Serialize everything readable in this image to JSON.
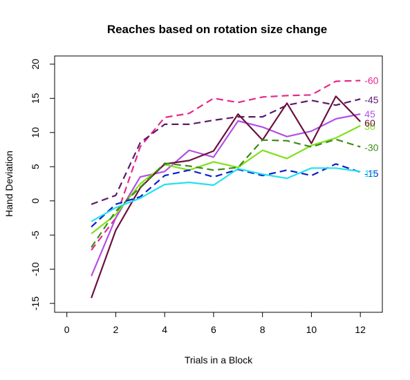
{
  "chart_data": {
    "type": "line",
    "title": "Reaches based on rotation size change",
    "xlabel": "Trials in a Block",
    "ylabel": "Hand Deviation",
    "xlim": [
      -0.5,
      12.9
    ],
    "ylim": [
      -16.3,
      21.2
    ],
    "xticks": [
      0,
      2,
      4,
      6,
      8,
      10,
      12
    ],
    "yticks": [
      -15,
      -10,
      -5,
      0,
      5,
      10,
      15,
      20
    ],
    "x": [
      1,
      2,
      3,
      4,
      5,
      6,
      7,
      8,
      9,
      10,
      11,
      12
    ],
    "series": [
      {
        "name": "-60",
        "color": "#e6278a",
        "dash": "dashed",
        "label_y": 17.6,
        "values": [
          -7.2,
          -2.5,
          7.9,
          12.2,
          12.8,
          15.0,
          14.4,
          15.2,
          15.4,
          15.5,
          17.5,
          17.6
        ]
      },
      {
        "name": "-45",
        "color": "#5b1a6b",
        "dash": "dashed",
        "label_y": 14.8,
        "values": [
          -0.5,
          0.8,
          8.5,
          11.2,
          11.2,
          11.8,
          12.3,
          12.3,
          14.0,
          14.7,
          14.0,
          14.9
        ]
      },
      {
        "name": "45",
        "color": "#b24fe6",
        "dash": "solid",
        "label_y": 12.7,
        "values": [
          -11.0,
          -2.5,
          3.5,
          4.3,
          7.4,
          6.4,
          11.7,
          10.8,
          9.4,
          10.2,
          12.0,
          12.7
        ]
      },
      {
        "name": "30",
        "color": "#80e01a",
        "dash": "solid",
        "label_y": 10.9,
        "values": [
          -4.8,
          -2.0,
          2.5,
          5.3,
          4.5,
          5.7,
          4.9,
          7.4,
          6.2,
          8.1,
          9.2,
          11.0
        ]
      },
      {
        "name": "60",
        "color": "#6b0f3c",
        "dash": "solid",
        "label_y": 11.4,
        "values": [
          -14.2,
          -4.3,
          1.9,
          5.4,
          5.9,
          7.3,
          12.7,
          8.9,
          14.3,
          8.4,
          15.3,
          11.6
        ]
      },
      {
        "name": "-30",
        "color": "#3c8c14",
        "dash": "dashed",
        "label_y": 7.8,
        "values": [
          -6.8,
          -1.5,
          2.0,
          5.5,
          5.1,
          4.5,
          4.9,
          8.9,
          8.8,
          7.9,
          9.0,
          7.9
        ]
      },
      {
        "name": "-15",
        "color": "#0b1fc4",
        "dash": "dashed",
        "label_y": 4.0,
        "values": [
          -3.8,
          -0.5,
          0.6,
          3.7,
          4.5,
          3.5,
          4.6,
          3.7,
          4.5,
          3.7,
          5.4,
          4.2
        ]
      },
      {
        "name": "15",
        "color": "#22e0f0",
        "dash": "solid",
        "label_y": 4.0,
        "values": [
          -3.0,
          -1.0,
          0.4,
          2.4,
          2.7,
          2.3,
          4.7,
          3.9,
          3.3,
          4.8,
          4.8,
          4.3
        ]
      }
    ],
    "grid": false,
    "legend": "none"
  }
}
